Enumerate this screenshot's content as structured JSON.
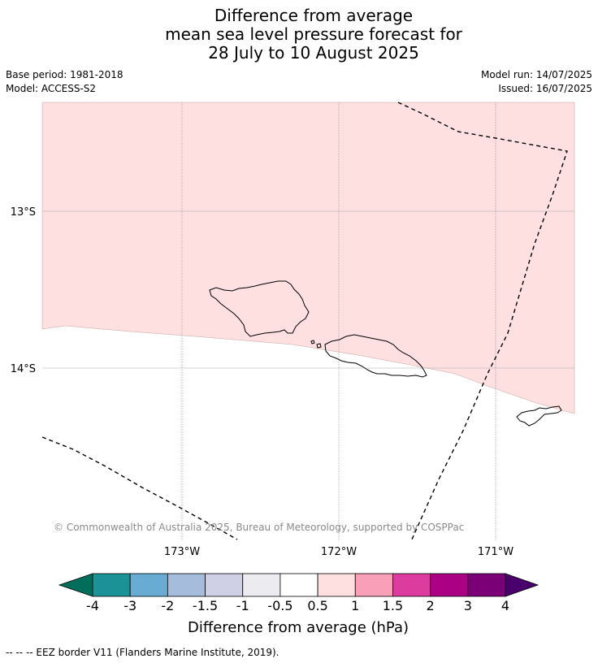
{
  "title": {
    "line1": "Difference from average",
    "line2": "mean sea level pressure forecast for",
    "line3": "28 July to 10 August 2025"
  },
  "meta": {
    "base_period": "Base period: 1981-2018",
    "model": "Model: ACCESS-S2",
    "model_run": "Model run: 14/07/2025",
    "issued": "Issued: 16/07/2025"
  },
  "map": {
    "lat_labels": [
      "13°S",
      "14°S"
    ],
    "lon_labels": [
      "173°W",
      "172°W",
      "171°W"
    ],
    "copyright": "© Commonwealth of Australia 2025, Bureau of Meteorology, supported by COSPPac",
    "fill_colors": {
      "anomaly_0_5_to_1": "#fde0df",
      "neutral": "#ffffff"
    },
    "features": [
      "savaii-island",
      "upolu-island",
      "tutuila-island",
      "eez-border"
    ]
  },
  "colorbar": {
    "title": "Difference from average (hPa)",
    "tick_labels": [
      "-4",
      "-3",
      "-2",
      "-1.5",
      "-1",
      "-0.5",
      "0.5",
      "1",
      "1.5",
      "2",
      "3",
      "4"
    ],
    "colors": [
      "#006e5a",
      "#1b9396",
      "#68acd4",
      "#a6bcdc",
      "#cfcfe6",
      "#ececf0",
      "#ffffff",
      "#fde0df",
      "#f9a0b8",
      "#dc3c9e",
      "#ab0084",
      "#7b0078",
      "#4a006c"
    ]
  },
  "footer": "--  --  -- EEZ border V11 (Flanders Marine Institute, 2019)."
}
